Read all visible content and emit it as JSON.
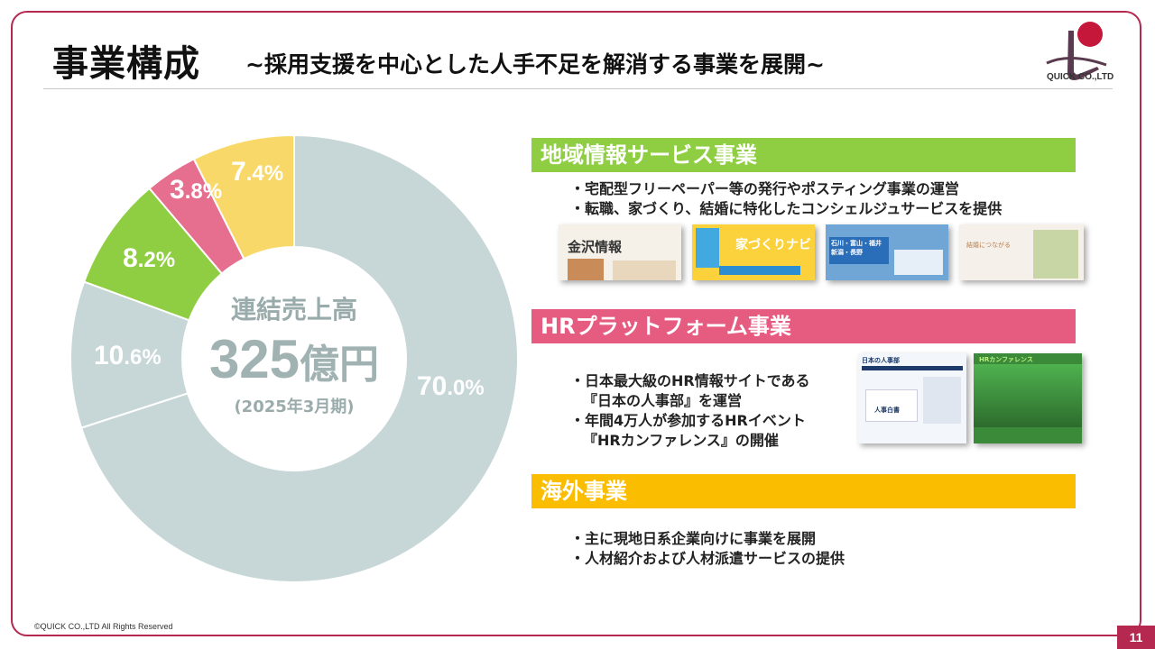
{
  "header": {
    "title": "事業構成",
    "subtitle": "~採用支援を中心とした人手不足を解消する事業を展開~",
    "logo_text": "QUICK CO.,LTD"
  },
  "chart_data": {
    "type": "pie",
    "center_label": "連結売上高",
    "center_value": "325",
    "center_unit": "億円",
    "center_period": "(2025年3月期)",
    "categories": [
      "",
      "",
      "",
      "",
      ""
    ],
    "values": [
      70.0,
      10.6,
      8.2,
      3.8,
      7.4
    ],
    "colors": [
      "#c7d6d6",
      "#c7d6d6",
      "#8fce43",
      "#e66e8e",
      "#f9d86a"
    ],
    "labels": [
      {
        "int": "70",
        "dec": ".0%"
      },
      {
        "int": "10",
        "dec": ".6%"
      },
      {
        "int": "8",
        "dec": ".2%"
      },
      {
        "int": "3",
        "dec": ".8%"
      },
      {
        "int": "7",
        "dec": ".4%"
      }
    ]
  },
  "sections": [
    {
      "title": "地域情報サービス事業",
      "color": "#8fce43",
      "bullets": [
        "・宅配型フリーペーパー等の発行やポスティング事業の運営",
        "・転職、家づくり、結婚に特化したコンシェルジュサービスを提供"
      ],
      "thumbs": [
        "金沢情報",
        "家づくりナビ",
        "石川・富山・福井 新潟・長野",
        "結婚につながる"
      ]
    },
    {
      "title": "HRプラットフォーム事業",
      "color": "#e65b80",
      "bullets": [
        "・日本最大級のHR情報サイトである",
        "『日本の人事部』を運営",
        "・年間4万人が参加するHRイベント",
        "『HRカンファレンス』の開催"
      ],
      "thumbs": [
        "日本の人事部",
        "人事白書",
        "HRカンファレンス"
      ]
    },
    {
      "title": "海外事業",
      "color": "#fbbd00",
      "bullets": [
        "・主に現地日系企業向けに事業を展開",
        "・人材紹介および人材派遣サービスの提供"
      ]
    }
  ],
  "footer": {
    "copyright": "©QUICK CO.,LTD All Rights Reserved",
    "page": "11"
  }
}
